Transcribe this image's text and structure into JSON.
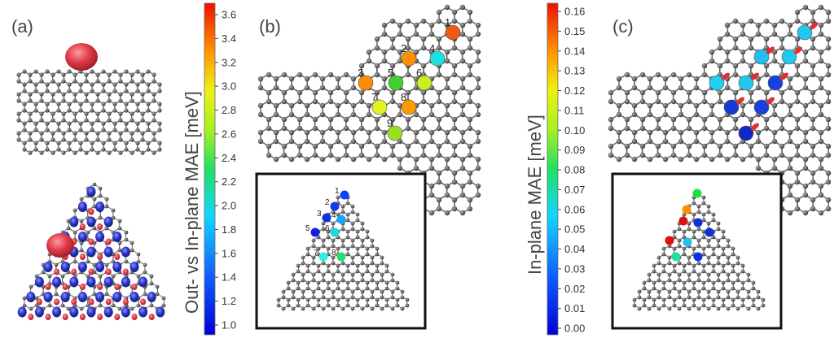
{
  "panels": {
    "a": "(a)",
    "b": "(b)",
    "c": "(c)"
  },
  "colorbar_b": {
    "title": "Out- vs  In-plane MAE [meV]",
    "ticks": [
      "3.6",
      "3.4",
      "3.2",
      "3.0",
      "2.8",
      "2.6",
      "2.4",
      "2.2",
      "2.0",
      "1.8",
      "1.6",
      "1.4",
      "1.2",
      "1.0"
    ]
  },
  "colorbar_c": {
    "title": "In-plane MAE [meV]",
    "ticks": [
      "0.16",
      "0.15",
      "0.14",
      "0.13",
      "0.12",
      "0.11",
      "0.10",
      "0.09",
      "0.08",
      "0.07",
      "0.06",
      "0.05",
      "0.04",
      "0.03",
      "0.02",
      "0.01",
      "0.00"
    ]
  },
  "sites_b": [
    "1",
    "2",
    "3",
    "4",
    "5",
    "6",
    "7",
    "8",
    "9"
  ],
  "sites_b_inset": [
    "1",
    "2",
    "3",
    "4",
    "5",
    "6",
    "7",
    "8"
  ],
  "colors": {
    "atom": "#555555",
    "spin_up": "#e03c4a",
    "spin_down": "#2a35c8"
  }
}
